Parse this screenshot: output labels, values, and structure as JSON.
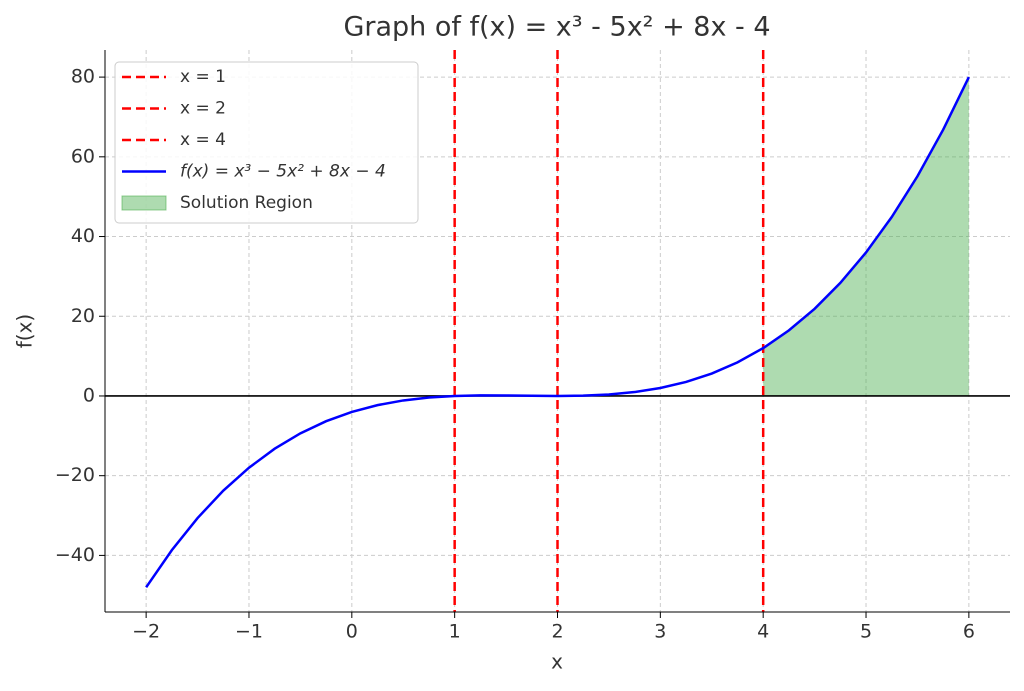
{
  "chart_data": {
    "type": "line",
    "title": "Graph of f(x) = x³ - 5x² + 8x - 4",
    "x_label": "x",
    "y_label": "f(x)",
    "xlim": [
      -2.4,
      6.4
    ],
    "ylim": [
      -54.2,
      86.8
    ],
    "xticks": [
      {
        "value": -2,
        "label": "−2"
      },
      {
        "value": -1,
        "label": "−1"
      },
      0,
      1,
      2,
      3,
      4,
      5,
      6
    ],
    "yticks": [
      {
        "value": -40,
        "label": "−40"
      },
      {
        "value": -20,
        "label": "−20"
      },
      0,
      20,
      40,
      60,
      80
    ],
    "grid": true,
    "legend": "upper left",
    "hline": 0,
    "vlines": [
      {
        "name": "x = 1",
        "x": 1,
        "color": "#ff0000"
      },
      {
        "name": "x = 2",
        "x": 2,
        "color": "#ff0000"
      },
      {
        "name": "x = 4",
        "x": 4,
        "color": "#ff0000"
      }
    ],
    "series": [
      {
        "name": "f(x) = x³ − 5x² + 8x − 4",
        "color": "#0000ff",
        "x": [
          -2,
          -1.75,
          -1.5,
          -1.25,
          -1,
          -0.75,
          -0.5,
          -0.25,
          0,
          0.25,
          0.5,
          0.75,
          1,
          1.25,
          1.5,
          1.75,
          2,
          2.25,
          2.5,
          2.75,
          3,
          3.25,
          3.5,
          3.75,
          4,
          4.25,
          4.5,
          4.75,
          5,
          5.25,
          5.5,
          5.75,
          6
        ],
        "values": [
          -48,
          -38.671875,
          -30.625,
          -23.765625,
          -18,
          -13.234375,
          -9.375,
          -6.328125,
          -4,
          -2.296875,
          -1.125,
          -0.390625,
          0,
          0.140625,
          0.125,
          0.046875,
          0,
          0.078125,
          0.375,
          0.984375,
          2,
          3.515625,
          5.625,
          8.421875,
          12,
          16.453125,
          21.875,
          28.359375,
          36,
          44.890625,
          55.125,
          66.796875,
          80
        ]
      }
    ],
    "fill": {
      "name": "Solution Region",
      "color": "#4caf50",
      "x": [
        4,
        4.25,
        4.5,
        4.75,
        5,
        5.25,
        5.5,
        5.75,
        6
      ],
      "values": [
        12,
        16.453125,
        21.875,
        28.359375,
        36,
        44.890625,
        55.125,
        66.796875,
        80
      ]
    }
  }
}
